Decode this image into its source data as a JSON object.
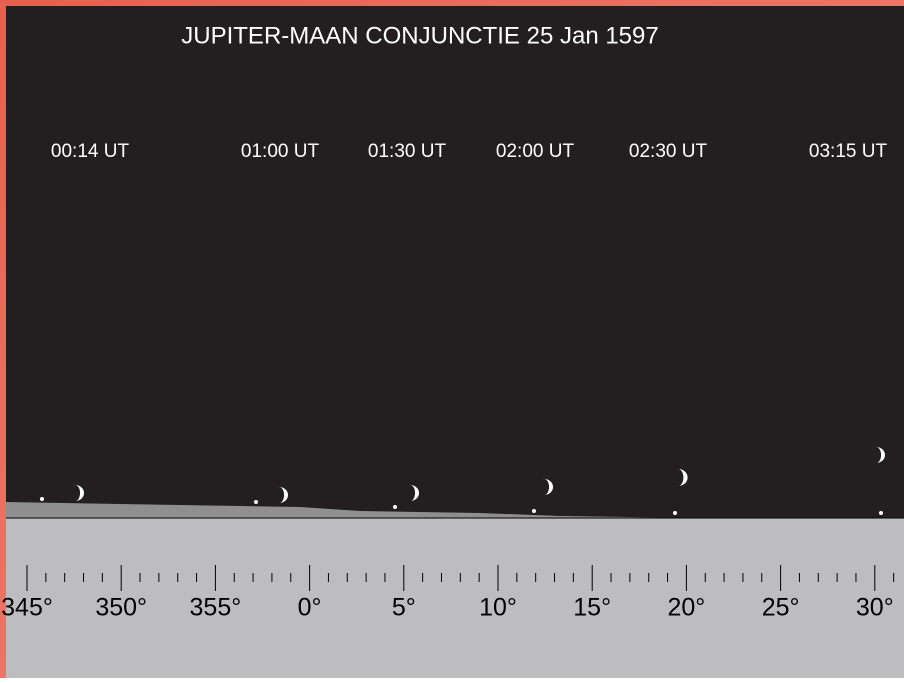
{
  "title": "JUPITER-MAAN CONJUNCTIE 25 Jan 1597",
  "times": [
    "00:14 UT",
    "01:00 UT",
    "01:30 UT",
    "02:00 UT",
    "02:30 UT",
    "03:15 UT"
  ],
  "azimuth_scale": {
    "labels": [
      "345°",
      "350°",
      "355°",
      "0°",
      "5°",
      "10°",
      "15°",
      "20°",
      "25°",
      "30°"
    ]
  }
}
